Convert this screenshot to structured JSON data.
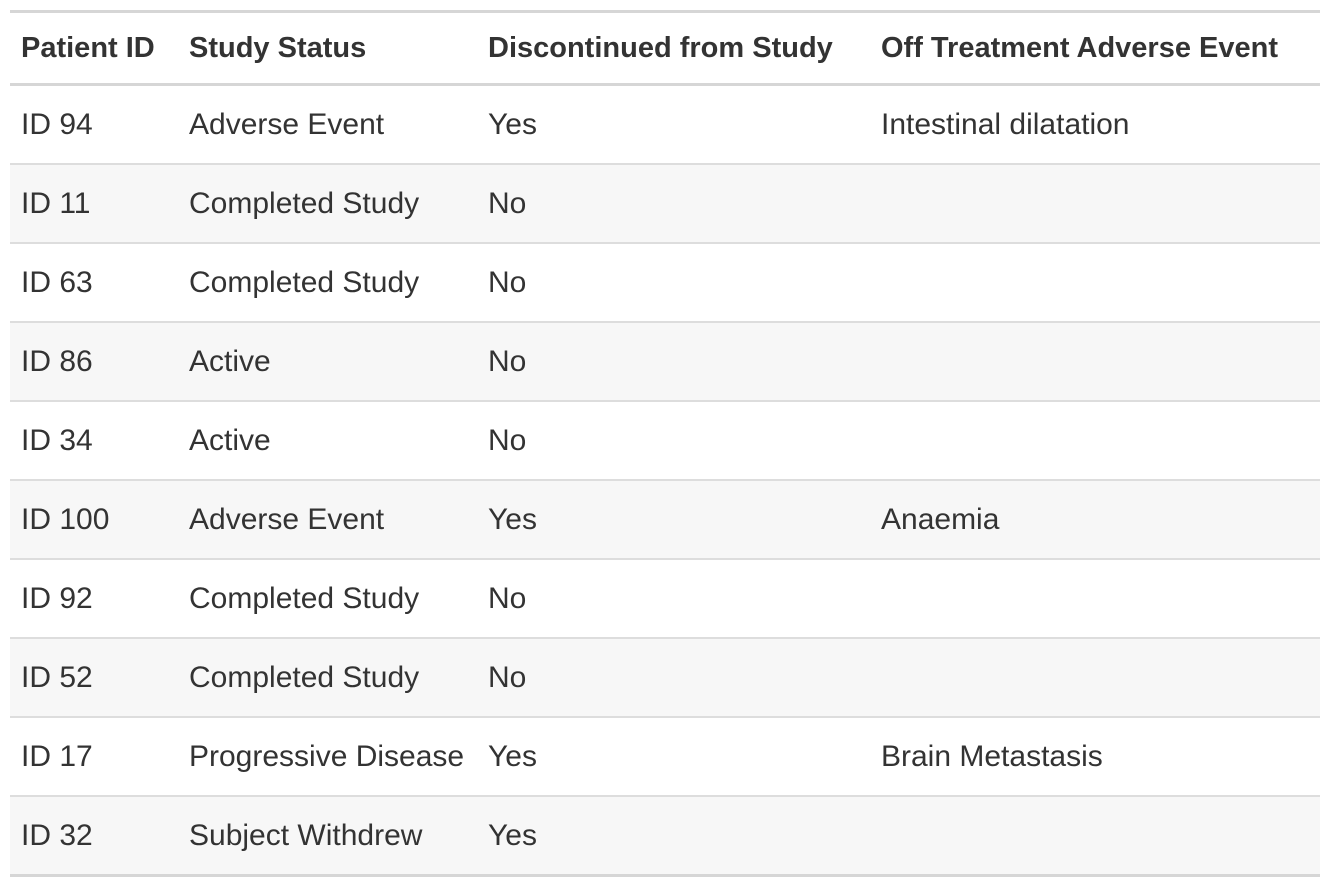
{
  "table": {
    "columns": [
      "Patient ID",
      "Study Status",
      "Discontinued from Study",
      "Off Treatment Adverse Event"
    ],
    "rows": [
      [
        "ID 94",
        "Adverse Event",
        "Yes",
        "Intestinal dilatation"
      ],
      [
        "ID 11",
        "Completed Study",
        "No",
        null
      ],
      [
        "ID 63",
        "Completed Study",
        "No",
        null
      ],
      [
        "ID 86",
        "Active",
        "No",
        null
      ],
      [
        "ID 34",
        "Active",
        "No",
        null
      ],
      [
        "ID 100",
        "Adverse Event",
        "Yes",
        "Anaemia"
      ],
      [
        "ID 92",
        "Completed Study",
        "No",
        null
      ],
      [
        "ID 52",
        "Completed Study",
        "No",
        null
      ],
      [
        "ID 17",
        "Progressive Disease",
        "Yes",
        "Brain Metastasis"
      ],
      [
        "ID 32",
        "Subject Withdrew",
        "Yes",
        null
      ]
    ]
  }
}
